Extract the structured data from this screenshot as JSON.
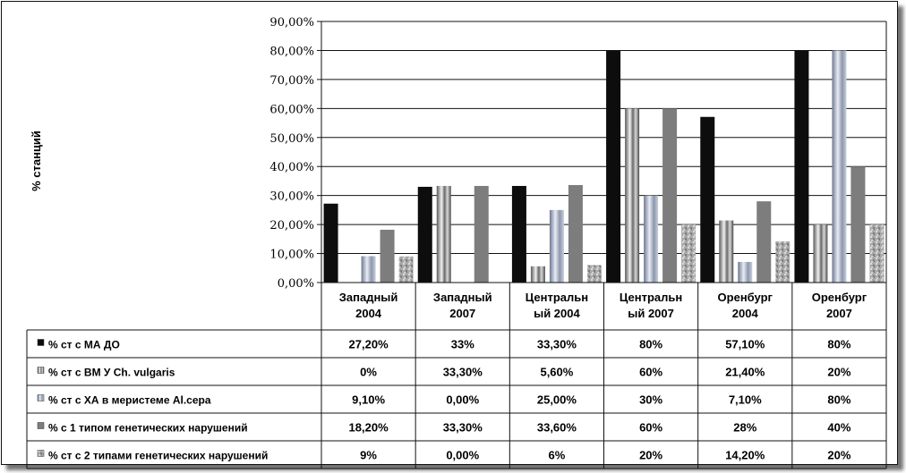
{
  "chart_data": {
    "type": "bar",
    "ylabel": "% станций",
    "ylim": [
      0,
      90
    ],
    "yticks": [
      "0,00%",
      "10,00%",
      "20,00%",
      "30,00%",
      "40,00%",
      "50,00%",
      "60,00%",
      "70,00%",
      "80,00%",
      "90,00%"
    ],
    "grid": true,
    "legend": "data table below chart",
    "categories": [
      [
        "Западный",
        "2004"
      ],
      [
        "Западный",
        "2007"
      ],
      [
        "Центральн",
        "ый 2004"
      ],
      [
        "Центральн",
        "ый 2007"
      ],
      [
        "Оренбург",
        "2004"
      ],
      [
        "Оренбург",
        "2007"
      ]
    ],
    "series": [
      {
        "name": "% ст с МА ДО",
        "values": [
          27.2,
          33,
          33.3,
          80,
          57.1,
          80
        ],
        "labels": [
          "27,20%",
          "33%",
          "33,30%",
          "80%",
          "57,10%",
          "80%"
        ],
        "color": "#111111"
      },
      {
        "name": "% ст с ВМ У Ch. vulgaris",
        "values": [
          0,
          33.3,
          5.6,
          60,
          21.4,
          20
        ],
        "labels": [
          "0%",
          "33,30%",
          "5,60%",
          "60%",
          "21,40%",
          "20%"
        ],
        "color": "#9a9a9a"
      },
      {
        "name": "% ст с ХА в меристеме Al.сера",
        "values": [
          9.1,
          0,
          25,
          30,
          7.1,
          80
        ],
        "labels": [
          "9,10%",
          "0,00%",
          "25,00%",
          "30%",
          "7,10%",
          "80%"
        ],
        "color": "#a4aec4"
      },
      {
        "name": "% с 1 типом генетических нарушений",
        "values": [
          18.2,
          33.3,
          33.6,
          60,
          28,
          40
        ],
        "labels": [
          "18,20%",
          "33,30%",
          "33,60%",
          "60%",
          "28%",
          "40%"
        ],
        "color": "#7d7d7d"
      },
      {
        "name": "% ст с 2 типами генетических нарушений",
        "values": [
          9,
          0,
          6,
          20,
          14.2,
          20
        ],
        "labels": [
          "9%",
          "0,00%",
          "6%",
          "20%",
          "14,20%",
          "20%"
        ],
        "color": "#b0b0b0"
      }
    ]
  }
}
